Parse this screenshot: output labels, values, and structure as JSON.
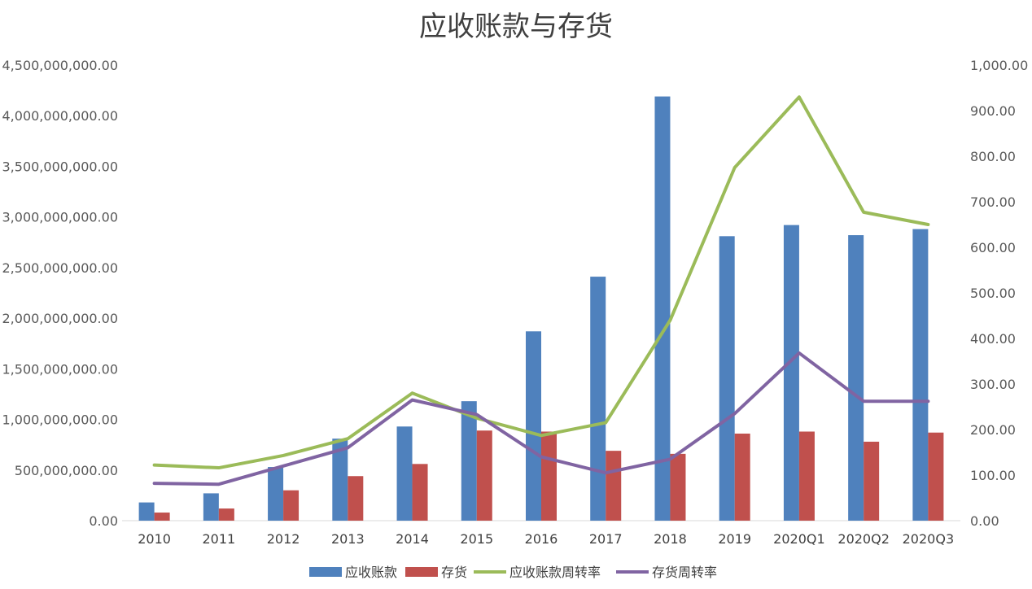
{
  "chart_data": {
    "type": "bar",
    "title": "应收账款与存货",
    "categories": [
      "2010",
      "2011",
      "2012",
      "2013",
      "2014",
      "2015",
      "2016",
      "2017",
      "2018",
      "2019",
      "2020Q1",
      "2020Q2",
      "2020Q3"
    ],
    "series": [
      {
        "name": "应收账款",
        "type": "bar",
        "axis": "left",
        "color": "#4F81BD",
        "values": [
          180000000,
          270000000,
          530000000,
          810000000,
          930000000,
          1180000000,
          1870000000,
          2410000000,
          4190000000,
          2810000000,
          2920000000,
          2820000000,
          2880000000
        ]
      },
      {
        "name": "存货",
        "type": "bar",
        "axis": "left",
        "color": "#C0504D",
        "values": [
          80000000,
          120000000,
          300000000,
          440000000,
          560000000,
          890000000,
          880000000,
          690000000,
          660000000,
          860000000,
          880000000,
          780000000,
          870000000
        ]
      },
      {
        "name": "应收账款周转率",
        "type": "line",
        "axis": "right",
        "color": "#9BBB59",
        "values": [
          122,
          116,
          143,
          180,
          280,
          225,
          187,
          215,
          440,
          775,
          930,
          677,
          650
        ]
      },
      {
        "name": "存货周转率",
        "type": "line",
        "axis": "right",
        "color": "#8064A2",
        "values": [
          82,
          80,
          120,
          160,
          265,
          233,
          140,
          105,
          135,
          235,
          368,
          262,
          262
        ]
      }
    ],
    "y_left": {
      "min": 0,
      "max": 4500000000,
      "ticks": [
        0,
        500000000,
        1000000000,
        1500000000,
        2000000000,
        2500000000,
        3000000000,
        3500000000,
        4000000000,
        4500000000
      ],
      "tick_labels": [
        "0.00",
        "500,000,000.00",
        "1,000,000,000.00",
        "1,500,000,000.00",
        "2,000,000,000.00",
        "2,500,000,000.00",
        "3,000,000,000.00",
        "3,500,000,000.00",
        "4,000,000,000.00",
        "4,500,000,000.00"
      ]
    },
    "y_right": {
      "min": 0,
      "max": 1000,
      "ticks": [
        0,
        100,
        200,
        300,
        400,
        500,
        600,
        700,
        800,
        900,
        1000
      ],
      "tick_labels": [
        "0.00",
        "100.00",
        "200.00",
        "300.00",
        "400.00",
        "500.00",
        "600.00",
        "700.00",
        "800.00",
        "900.00",
        "1,000.00"
      ]
    },
    "grid": false,
    "legend_position": "bottom"
  }
}
